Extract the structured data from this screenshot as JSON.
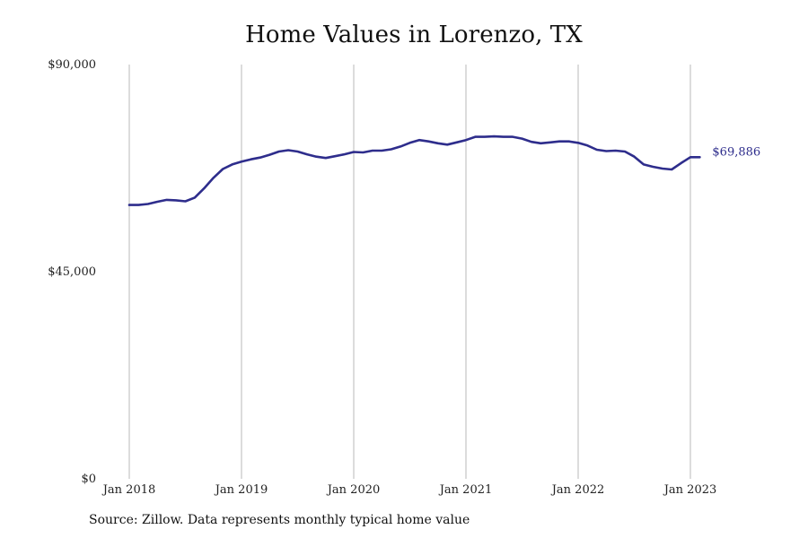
{
  "chart_data": {
    "type": "line",
    "title": "Home Values in Lorenzo, TX",
    "source": "Source: Zillow. Data represents monthly typical home value",
    "ylim": [
      0,
      90000
    ],
    "y_ticks": [
      {
        "value": 0,
        "label": "$0"
      },
      {
        "value": 45000,
        "label": "$45,000"
      },
      {
        "value": 90000,
        "label": "$90,000"
      }
    ],
    "x_ticks": [
      {
        "value": "2018-01",
        "label": "Jan 2018"
      },
      {
        "value": "2019-01",
        "label": "Jan 2019"
      },
      {
        "value": "2020-01",
        "label": "Jan 2020"
      },
      {
        "value": "2021-01",
        "label": "Jan 2021"
      },
      {
        "value": "2022-01",
        "label": "Jan 2022"
      },
      {
        "value": "2023-01",
        "label": "Jan 2023"
      }
    ],
    "grid": "vertical",
    "line_color": "#2e2d8c",
    "grid_color": "#b8b8b8",
    "end_label": "$69,886",
    "series": [
      {
        "x": [
          "2018-01",
          "2018-02",
          "2018-03",
          "2018-04",
          "2018-05",
          "2018-06",
          "2018-07",
          "2018-08",
          "2018-09",
          "2018-10",
          "2018-11",
          "2018-12",
          "2019-01",
          "2019-02",
          "2019-03",
          "2019-04",
          "2019-05",
          "2019-06",
          "2019-07",
          "2019-08",
          "2019-09",
          "2019-10",
          "2019-11",
          "2019-12",
          "2020-01",
          "2020-02",
          "2020-03",
          "2020-04",
          "2020-05",
          "2020-06",
          "2020-07",
          "2020-08",
          "2020-09",
          "2020-10",
          "2020-11",
          "2020-12",
          "2021-01",
          "2021-02",
          "2021-03",
          "2021-04",
          "2021-05",
          "2021-06",
          "2021-07",
          "2021-08",
          "2021-09",
          "2021-10",
          "2021-11",
          "2021-12",
          "2022-01",
          "2022-02",
          "2022-03",
          "2022-04",
          "2022-05",
          "2022-06",
          "2022-07",
          "2022-08",
          "2022-09",
          "2022-10",
          "2022-11",
          "2022-12",
          "2023-01",
          "2023-02"
        ],
        "values": [
          59500,
          59500,
          59700,
          60200,
          60600,
          60500,
          60300,
          61100,
          63100,
          65400,
          67300,
          68300,
          68900,
          69400,
          69800,
          70400,
          71100,
          71400,
          71100,
          70500,
          70000,
          69700,
          70100,
          70500,
          71000,
          70900,
          71300,
          71300,
          71600,
          72200,
          73000,
          73600,
          73300,
          72900,
          72600,
          73100,
          73600,
          74300,
          74300,
          74400,
          74300,
          74300,
          73900,
          73200,
          72900,
          73100,
          73300,
          73300,
          73000,
          72400,
          71500,
          71200,
          71300,
          71100,
          70000,
          68300,
          67800,
          67400,
          67200,
          68600,
          69886,
          69886
        ]
      }
    ]
  }
}
